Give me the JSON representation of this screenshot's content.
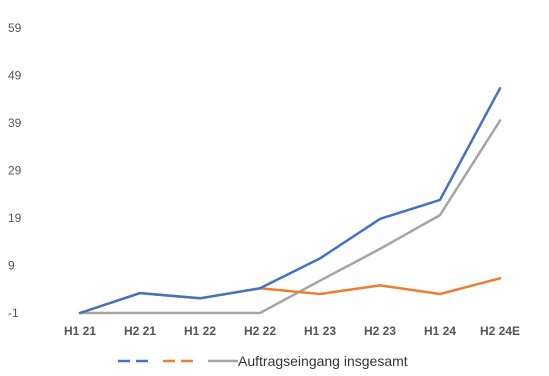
{
  "chart_data": {
    "type": "line",
    "categories": [
      "H1 21",
      "H2 21",
      "H1 22",
      "H2 22",
      "H1 23",
      "H2 23",
      "H1 24",
      "H2 24E"
    ],
    "y_ticks": [
      "59",
      "49",
      "39",
      "29",
      "19",
      "9",
      "-1"
    ],
    "ylim": [
      -1,
      59
    ],
    "grid": false,
    "legend_position": "bottom",
    "legend_label": "Auftragseingang insgesamt",
    "series": [
      {
        "color": "#4472C4",
        "dashed_legend": true,
        "values": [
          -1,
          3.2,
          2.1,
          4.2,
          10.5,
          18.8,
          22.8,
          46.3
        ]
      },
      {
        "color": "#ED7D31",
        "dashed_legend": true,
        "values": [
          -1,
          3.2,
          2.1,
          4.2,
          3,
          4.8,
          3,
          6.3
        ]
      },
      {
        "color": "#A5A5A5",
        "dashed_legend": false,
        "name": "Auftragseingang insgesamt",
        "values": [
          -1,
          -1,
          -1,
          -1,
          5.8,
          12.5,
          19.6,
          39.5
        ]
      }
    ]
  }
}
